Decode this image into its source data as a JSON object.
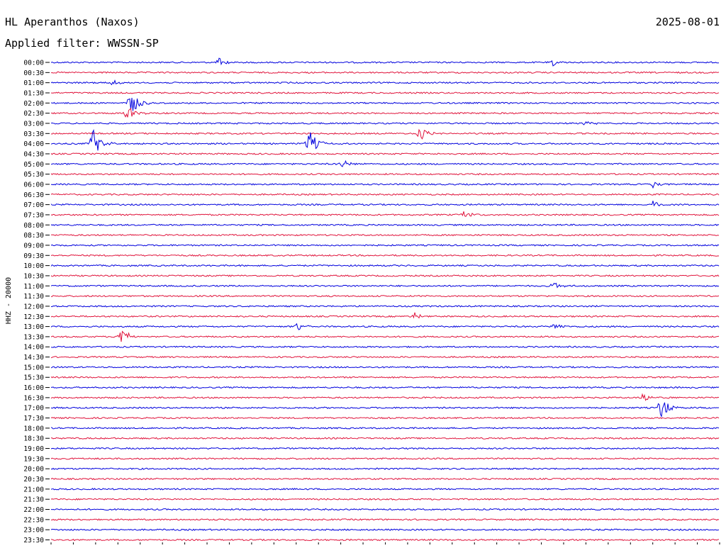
{
  "header": {
    "station": "HL Aperanthos (Naxos)",
    "date": "2025-08-01",
    "filter": "Applied filter: WWSSN-SP"
  },
  "chart_data": {
    "type": "line",
    "title": "HL Aperanthos (Naxos)",
    "ylabel": "HHZ - 20000",
    "row_labels": [
      "00:00",
      "00:30",
      "01:00",
      "01:30",
      "02:00",
      "02:30",
      "03:00",
      "03:30",
      "04:00",
      "04:30",
      "05:00",
      "05:30",
      "06:00",
      "06:30",
      "07:00",
      "07:30",
      "08:00",
      "08:30",
      "09:00",
      "09:30",
      "10:00",
      "10:30",
      "11:00",
      "11:30",
      "12:00",
      "12:30",
      "13:00",
      "13:30",
      "14:00",
      "14:30",
      "15:00",
      "15:30",
      "16:00",
      "16:30",
      "17:00",
      "17:30",
      "18:00",
      "18:30",
      "19:00",
      "19:30",
      "20:00",
      "20:30",
      "21:00",
      "21:30",
      "22:00",
      "22:30",
      "23:00",
      "23:30"
    ],
    "series_colors": {
      "even_rows": "#0000dd",
      "odd_rows": "#e0143c"
    },
    "x_range_minutes": [
      0,
      30
    ],
    "events": [
      {
        "row": 0,
        "minute": 7.5,
        "amplitude": 8
      },
      {
        "row": 0,
        "minute": 22.5,
        "amplitude": 6
      },
      {
        "row": 2,
        "minute": 2.7,
        "amplitude": 5
      },
      {
        "row": 4,
        "minute": 3.5,
        "amplitude": 26
      },
      {
        "row": 5,
        "minute": 3.3,
        "amplitude": 18
      },
      {
        "row": 6,
        "minute": 24.0,
        "amplitude": 6
      },
      {
        "row": 7,
        "minute": 16.5,
        "amplitude": 18
      },
      {
        "row": 8,
        "minute": 1.8,
        "amplitude": 28
      },
      {
        "row": 8,
        "minute": 11.5,
        "amplitude": 28
      },
      {
        "row": 10,
        "minute": 13.0,
        "amplitude": 8
      },
      {
        "row": 12,
        "minute": 27.0,
        "amplitude": 6
      },
      {
        "row": 14,
        "minute": 27.0,
        "amplitude": 6
      },
      {
        "row": 15,
        "minute": 18.5,
        "amplitude": 8
      },
      {
        "row": 22,
        "minute": 22.5,
        "amplitude": 7
      },
      {
        "row": 25,
        "minute": 16.3,
        "amplitude": 7
      },
      {
        "row": 26,
        "minute": 11.0,
        "amplitude": 7
      },
      {
        "row": 26,
        "minute": 22.5,
        "amplitude": 7
      },
      {
        "row": 27,
        "minute": 3.1,
        "amplitude": 16
      },
      {
        "row": 33,
        "minute": 26.5,
        "amplitude": 9
      },
      {
        "row": 34,
        "minute": 27.3,
        "amplitude": 22
      }
    ]
  }
}
